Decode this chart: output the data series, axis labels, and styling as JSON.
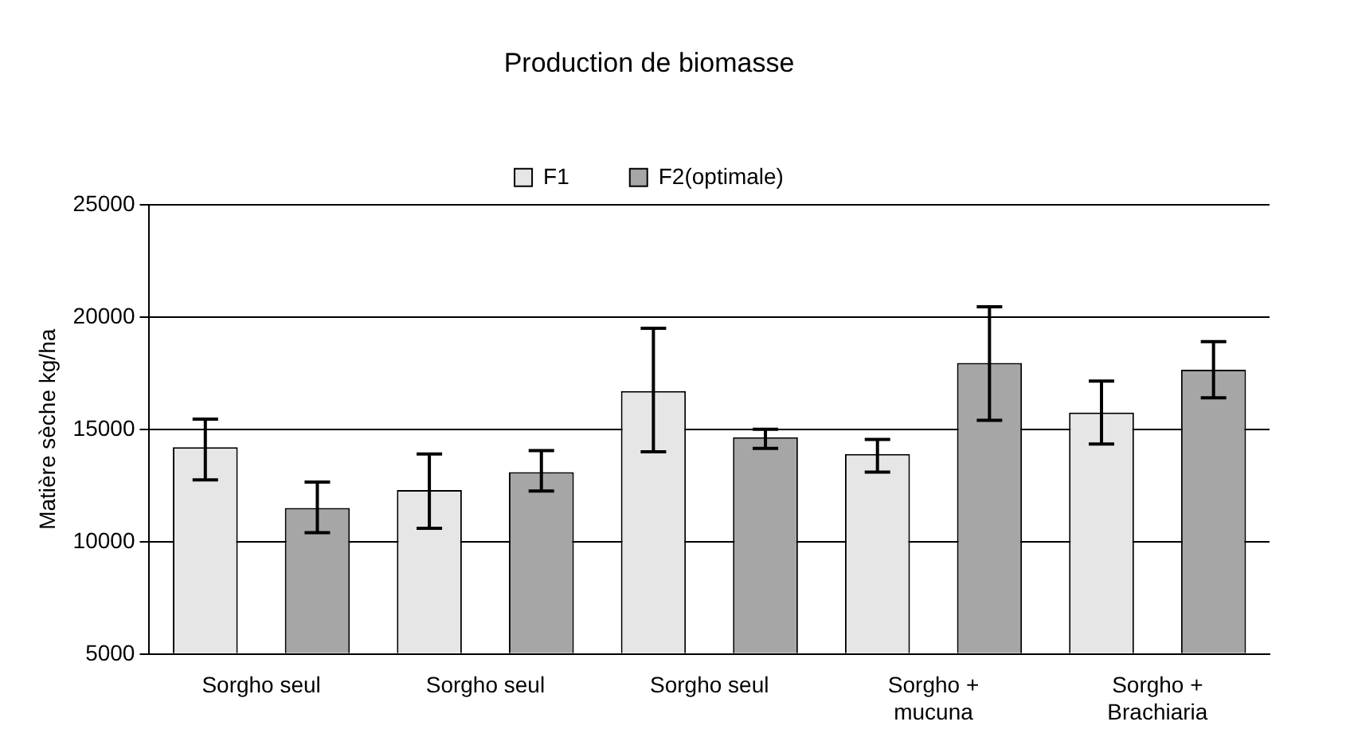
{
  "chart_data": {
    "type": "bar",
    "title": "Production de biomasse",
    "ylabel": "Matière sèche kg/ha",
    "categories": [
      "Sorgho seul",
      "Sorgho seul",
      "Sorgho seul",
      "Sorgho + mucuna",
      "Sorgho + Brachiaria"
    ],
    "series": [
      {
        "name": "F1",
        "color": "#e6e6e6",
        "values": [
          14200,
          12300,
          16700,
          13900,
          15750
        ],
        "errors": [
          [
            12750,
            15450
          ],
          [
            10600,
            13900
          ],
          [
            14000,
            19500
          ],
          [
            13100,
            14550
          ],
          [
            14350,
            17150
          ]
        ]
      },
      {
        "name": "F2(optimale)",
        "color": "#a6a6a6",
        "values": [
          11500,
          13100,
          14650,
          17950,
          17650
        ],
        "errors": [
          [
            10400,
            12650
          ],
          [
            12250,
            14050
          ],
          [
            14150,
            15000
          ],
          [
            15400,
            20450
          ],
          [
            16400,
            18900
          ]
        ]
      }
    ],
    "ylim": [
      5000,
      25000
    ],
    "yticks": [
      5000,
      10000,
      15000,
      20000,
      25000
    ],
    "grid": "y",
    "legend": "top"
  }
}
